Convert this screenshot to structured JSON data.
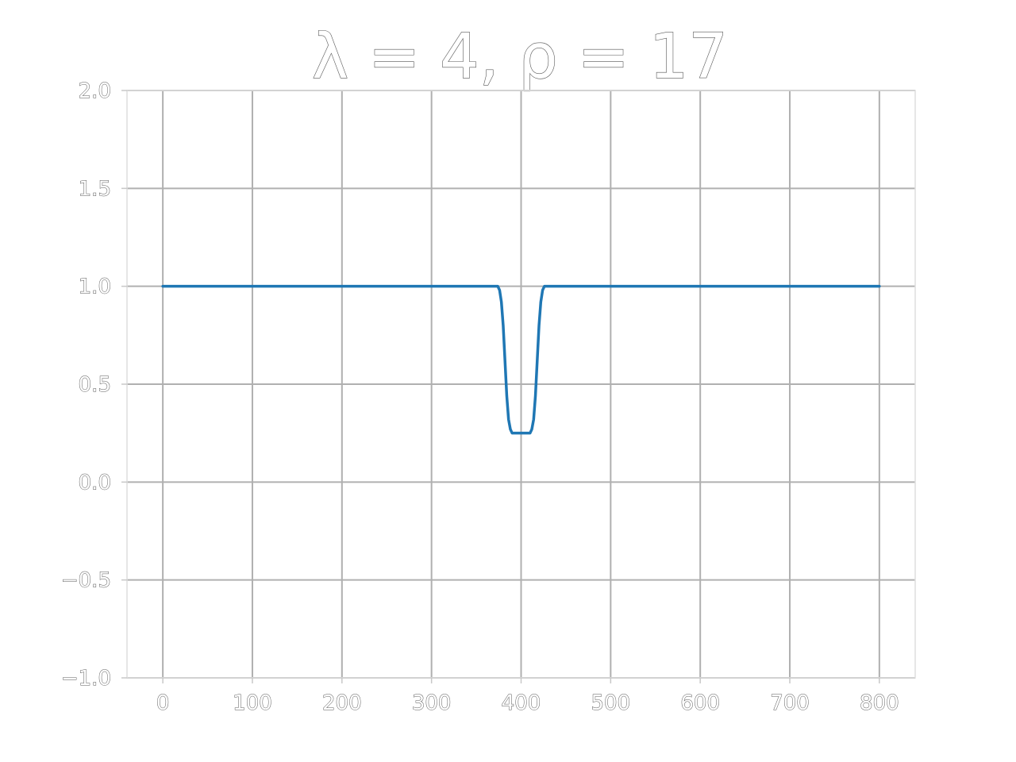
{
  "chart_data": {
    "type": "line",
    "title": "λ = 4, ρ = 17",
    "xlabel": "",
    "ylabel": "",
    "xlim": [
      -40,
      840
    ],
    "ylim": [
      -1.0,
      2.0
    ],
    "xticks": [
      0,
      100,
      200,
      300,
      400,
      500,
      600,
      700,
      800
    ],
    "xtick_labels": [
      "0",
      "100",
      "200",
      "300",
      "400",
      "500",
      "600",
      "700",
      "800"
    ],
    "yticks": [
      -1.0,
      -0.5,
      0.0,
      0.5,
      1.0,
      1.5,
      2.0
    ],
    "ytick_labels": [
      "−1.0",
      "−0.5",
      "0.0",
      "0.5",
      "1.0",
      "1.5",
      "2.0"
    ],
    "grid": true,
    "series": [
      {
        "color": "#1f77b4",
        "x": [
          0,
          100,
          200,
          300,
          370,
          374,
          376,
          378,
          380,
          382,
          384,
          386,
          388,
          390,
          392,
          394,
          400,
          406,
          408,
          410,
          412,
          414,
          416,
          418,
          420,
          422,
          424,
          426,
          430,
          500,
          600,
          700,
          800
        ],
        "y": [
          1.0,
          1.0,
          1.0,
          1.0,
          1.0,
          1.0,
          0.98,
          0.92,
          0.8,
          0.62,
          0.44,
          0.32,
          0.27,
          0.25,
          0.25,
          0.25,
          0.25,
          0.25,
          0.25,
          0.25,
          0.27,
          0.32,
          0.44,
          0.62,
          0.8,
          0.92,
          0.98,
          1.0,
          1.0,
          1.0,
          1.0,
          1.0,
          1.0
        ]
      }
    ]
  }
}
